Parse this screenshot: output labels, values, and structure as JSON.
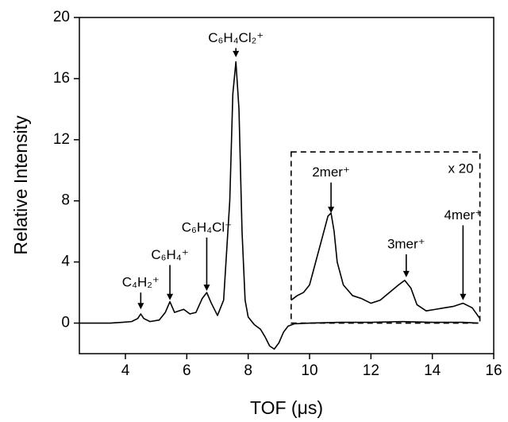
{
  "chart_data": {
    "type": "line",
    "xlabel": "TOF (μs)",
    "ylabel": "Relative Intensity",
    "xlim": [
      2.5,
      16
    ],
    "ylim": [
      -2,
      20
    ],
    "xticks": [
      4,
      6,
      8,
      10,
      12,
      14,
      16
    ],
    "yticks": [
      0,
      4,
      8,
      12,
      16,
      20
    ],
    "series": [
      {
        "color": "#000000",
        "x": [
          2.5,
          3.5,
          3.9,
          4.2,
          4.4,
          4.5,
          4.6,
          4.8,
          5.1,
          5.3,
          5.45,
          5.6,
          5.75,
          5.9,
          6.1,
          6.3,
          6.5,
          6.65,
          6.8,
          7.0,
          7.2,
          7.4,
          7.5,
          7.6,
          7.7,
          7.8,
          7.9,
          8.0,
          8.2,
          8.4,
          8.55,
          8.7,
          8.85,
          9.0,
          9.15,
          9.3,
          9.5,
          10,
          11,
          12,
          13,
          14,
          15,
          15.5
        ],
        "values": [
          0,
          0,
          0.05,
          0.1,
          0.3,
          0.6,
          0.3,
          0.1,
          0.2,
          0.7,
          1.4,
          0.7,
          0.8,
          0.9,
          0.6,
          0.7,
          1.6,
          2.0,
          1.3,
          0.5,
          1.5,
          8,
          15,
          17.1,
          14,
          6,
          1.5,
          0.4,
          -0.1,
          -0.4,
          -0.9,
          -1.5,
          -1.7,
          -1.3,
          -0.6,
          -0.2,
          -0.05,
          0,
          0.05,
          0.05,
          0.1,
          0.05,
          0.05,
          0
        ]
      },
      {
        "color": "#000000",
        "x": [
          9.4,
          9.6,
          9.8,
          10.0,
          10.2,
          10.4,
          10.6,
          10.7,
          10.8,
          10.9,
          11.1,
          11.4,
          11.7,
          12.0,
          12.3,
          12.6,
          12.9,
          13.1,
          13.3,
          13.5,
          13.8,
          14.1,
          14.4,
          14.7,
          15.0,
          15.3,
          15.55
        ],
        "values": [
          1.5,
          1.8,
          2,
          2.5,
          4,
          5.5,
          7,
          7.2,
          6,
          4,
          2.5,
          1.8,
          1.6,
          1.3,
          1.5,
          2,
          2.5,
          2.8,
          2.3,
          1.2,
          0.8,
          0.9,
          1.0,
          1.1,
          1.3,
          1.0,
          0.3
        ]
      }
    ],
    "inset_box": {
      "label": "x 20",
      "xlim": [
        9.4,
        15.55
      ],
      "ylim": [
        0,
        11.2
      ]
    },
    "annotations": [
      {
        "text": "C₄H₂⁺",
        "x": 4.5,
        "tail": 2.0,
        "tip": 0.9
      },
      {
        "text": "C₆H₄⁺",
        "x": 5.45,
        "tail": 3.8,
        "tip": 1.5
      },
      {
        "text": "C₆H₄Cl⁺",
        "x": 6.65,
        "tail": 5.6,
        "tip": 2.1
      },
      {
        "text": "C₆H₄Cl₂⁺",
        "x": 7.6,
        "tail": 18.0,
        "tip": 17.4
      },
      {
        "text": "2mer⁺",
        "x": 10.7,
        "tail": 9.2,
        "tip": 7.2
      },
      {
        "text": "3mer⁺",
        "x": 13.15,
        "tail": 4.5,
        "tip": 3.0
      },
      {
        "text": "4mer⁺",
        "x": 15.0,
        "tail": 6.4,
        "tip": 1.5
      }
    ]
  }
}
